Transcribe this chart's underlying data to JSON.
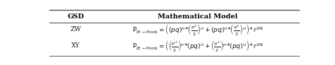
{
  "title_col1": "GSD",
  "title_col2": "Mathematical Model",
  "row1_col1": "ZW",
  "row2_col1": "XY",
  "row1_formula": "$\\mathrm{P}_{(\\mathrm{E-Pool})} = \\left( (pq)^{n} {*} \\left(\\frac{p^{2}}{2}\\right)^{n} + (pq)^{n} {*} \\left(\\frac{q^{2}}{2}\\right)^{n} \\right) {*}\\, r^{\\mathrm{2N}}$",
  "row2_formula": "$\\mathrm{P}_{(\\mathrm{E-Pool})} = \\left( \\left(\\frac{p^{2}}{2}\\right)^{n} {*}(pq)^{n} + \\left(\\frac{q^{2}}{2}\\right)^{n} {*}(pq)^{n} \\right) {*}\\, r^{\\mathrm{2N}}$",
  "bg_color": "#ffffff",
  "text_color": "#1a1a1a",
  "header_color": "#000000",
  "line_color": "#555555",
  "font_size": 6.5,
  "header_font_size": 7.0,
  "fig_width": 4.74,
  "fig_height": 0.92,
  "dpi": 100
}
